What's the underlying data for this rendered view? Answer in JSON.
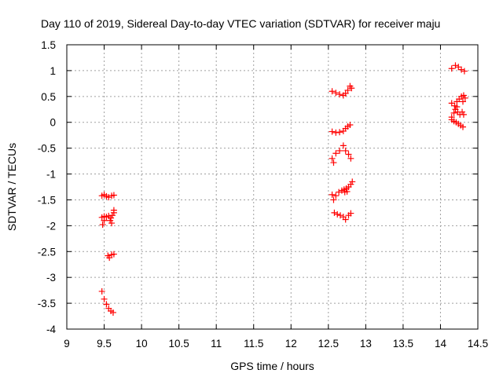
{
  "chart_data": {
    "type": "scatter",
    "title": "Day 110 of 2019, Sidereal Day-to-day VTEC variation (SDTVAR) for receiver maju",
    "xlabel": "GPS time / hours",
    "ylabel": "SDTVAR / TECUs",
    "xlim": [
      9,
      14.5
    ],
    "ylim": [
      -4,
      1.5
    ],
    "xticks": [
      "9",
      "9.5",
      "10",
      "10.5",
      "11",
      "11.5",
      "12",
      "12.5",
      "13",
      "13.5",
      "14",
      "14.5"
    ],
    "yticks": [
      "-4",
      "-3.5",
      "-3",
      "-2.5",
      "-2",
      "-1.5",
      "-1",
      "-0.5",
      "0",
      "0.5",
      "1",
      "1.5"
    ],
    "grid": true,
    "marker": "+",
    "marker_color": "#ff0000",
    "series": [
      {
        "name": "SDTVAR",
        "points": [
          [
            9.47,
            -1.42
          ],
          [
            9.5,
            -1.4
          ],
          [
            9.53,
            -1.43
          ],
          [
            9.56,
            -1.45
          ],
          [
            9.6,
            -1.42
          ],
          [
            9.63,
            -1.41
          ],
          [
            9.47,
            -1.84
          ],
          [
            9.5,
            -1.82
          ],
          [
            9.53,
            -1.83
          ],
          [
            9.56,
            -1.81
          ],
          [
            9.59,
            -1.85
          ],
          [
            9.61,
            -1.8
          ],
          [
            9.63,
            -1.75
          ],
          [
            9.63,
            -1.7
          ],
          [
            9.58,
            -1.9
          ],
          [
            9.6,
            -1.95
          ],
          [
            9.48,
            -1.98
          ],
          [
            9.5,
            -1.9
          ],
          [
            9.55,
            -2.58
          ],
          [
            9.57,
            -2.62
          ],
          [
            9.6,
            -2.56
          ],
          [
            9.63,
            -2.55
          ],
          [
            9.47,
            -3.27
          ],
          [
            9.5,
            -3.42
          ],
          [
            9.53,
            -3.52
          ],
          [
            9.56,
            -3.6
          ],
          [
            9.59,
            -3.65
          ],
          [
            9.62,
            -3.68
          ],
          [
            12.55,
            0.6
          ],
          [
            12.6,
            0.57
          ],
          [
            12.65,
            0.54
          ],
          [
            12.7,
            0.52
          ],
          [
            12.73,
            0.56
          ],
          [
            12.76,
            0.62
          ],
          [
            12.79,
            0.7
          ],
          [
            12.81,
            0.66
          ],
          [
            12.55,
            -0.18
          ],
          [
            12.6,
            -0.2
          ],
          [
            12.65,
            -0.19
          ],
          [
            12.7,
            -0.17
          ],
          [
            12.73,
            -0.12
          ],
          [
            12.76,
            -0.08
          ],
          [
            12.79,
            -0.05
          ],
          [
            12.55,
            -0.7
          ],
          [
            12.57,
            -0.78
          ],
          [
            12.6,
            -0.6
          ],
          [
            12.65,
            -0.55
          ],
          [
            12.7,
            -0.45
          ],
          [
            12.73,
            -0.55
          ],
          [
            12.77,
            -0.62
          ],
          [
            12.8,
            -0.7
          ],
          [
            12.55,
            -1.4
          ],
          [
            12.57,
            -1.5
          ],
          [
            12.6,
            -1.42
          ],
          [
            12.64,
            -1.35
          ],
          [
            12.68,
            -1.32
          ],
          [
            12.71,
            -1.3
          ],
          [
            12.74,
            -1.28
          ],
          [
            12.77,
            -1.25
          ],
          [
            12.8,
            -1.2
          ],
          [
            12.82,
            -1.15
          ],
          [
            12.72,
            -1.35
          ],
          [
            12.75,
            -1.34
          ],
          [
            12.58,
            -1.75
          ],
          [
            12.62,
            -1.78
          ],
          [
            12.66,
            -1.8
          ],
          [
            12.7,
            -1.83
          ],
          [
            12.73,
            -1.88
          ],
          [
            12.77,
            -1.8
          ],
          [
            12.8,
            -1.76
          ],
          [
            14.15,
            1.04
          ],
          [
            14.2,
            1.1
          ],
          [
            14.24,
            1.07
          ],
          [
            14.28,
            1.02
          ],
          [
            14.32,
            0.99
          ],
          [
            14.15,
            0.37
          ],
          [
            14.19,
            0.32
          ],
          [
            14.22,
            0.4
          ],
          [
            14.25,
            0.45
          ],
          [
            14.28,
            0.5
          ],
          [
            14.31,
            0.52
          ],
          [
            14.33,
            0.47
          ],
          [
            14.3,
            0.4
          ],
          [
            14.22,
            0.3
          ],
          [
            14.15,
            0.1
          ],
          [
            14.18,
            0.18
          ],
          [
            14.2,
            0.25
          ],
          [
            14.23,
            0.2
          ],
          [
            14.26,
            0.15
          ],
          [
            14.29,
            0.2
          ],
          [
            14.31,
            0.15
          ],
          [
            14.15,
            0.05
          ],
          [
            14.18,
            0.02
          ],
          [
            14.21,
            0.0
          ],
          [
            14.24,
            -0.03
          ],
          [
            14.27,
            -0.06
          ],
          [
            14.3,
            -0.09
          ]
        ]
      }
    ]
  }
}
